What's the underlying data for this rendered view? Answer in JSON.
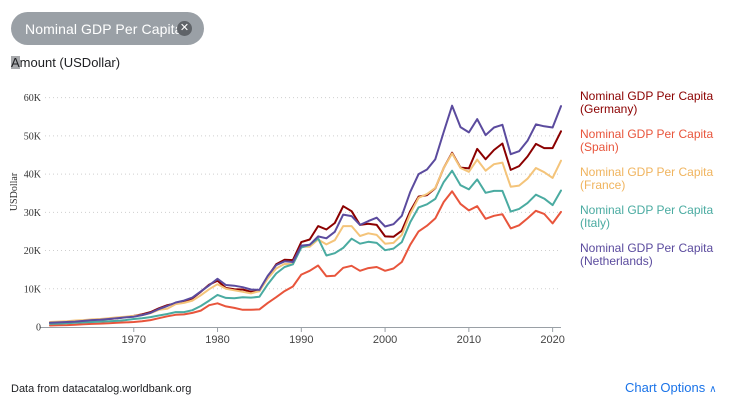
{
  "chip": {
    "label": "Nominal GDP Per Capita",
    "close_icon": "close-circle-icon"
  },
  "amount_label": "Amount (USDollar)",
  "source_text": "Data from datacatalog.worldbank.org",
  "chart_options": {
    "label": "Chart Options",
    "icon": "chevron-up-icon"
  },
  "chart_data": {
    "type": "line",
    "ylabel": "USDollar",
    "ylim": [
      0,
      62000
    ],
    "xlim": [
      1960,
      2021
    ],
    "y_ticks": [
      0,
      10000,
      20000,
      30000,
      40000,
      50000,
      60000
    ],
    "y_tick_labels": [
      "0",
      "10K",
      "20K",
      "30K",
      "40K",
      "50K",
      "60K"
    ],
    "x_ticks": [
      1970,
      1980,
      1990,
      2000,
      2010,
      2020
    ],
    "x_tick_labels": [
      "1970",
      "1980",
      "1990",
      "2000",
      "2010",
      "2020"
    ],
    "grid": "horizontal dotted",
    "legend_position": "right",
    "x": [
      1960,
      1961,
      1962,
      1963,
      1964,
      1965,
      1966,
      1967,
      1968,
      1969,
      1970,
      1971,
      1972,
      1973,
      1974,
      1975,
      1976,
      1977,
      1978,
      1979,
      1980,
      1981,
      1982,
      1983,
      1984,
      1985,
      1986,
      1987,
      1988,
      1989,
      1990,
      1991,
      1992,
      1993,
      1994,
      1995,
      1996,
      1997,
      1998,
      1999,
      2000,
      2001,
      2002,
      2003,
      2004,
      2005,
      2006,
      2007,
      2008,
      2009,
      2010,
      2011,
      2012,
      2013,
      2014,
      2015,
      2016,
      2017,
      2018,
      2019,
      2020,
      2021
    ],
    "series": [
      {
        "name": "Nominal GDP Per Capita (Germany)",
        "color": "#8b0000",
        "values": [
          1200,
          1300,
          1400,
          1500,
          1700,
          1900,
          2000,
          2100,
          2300,
          2600,
          2900,
          3300,
          3900,
          4900,
          5700,
          6200,
          6600,
          7500,
          9200,
          11100,
          12100,
          10200,
          9900,
          9800,
          9200,
          9400,
          13200,
          16400,
          17600,
          17500,
          22200,
          22900,
          26400,
          25500,
          27200,
          31600,
          30300,
          26700,
          27000,
          26700,
          23700,
          23600,
          25200,
          30300,
          34100,
          34500,
          36300,
          41600,
          45600,
          41700,
          41500,
          46600,
          43900,
          46300,
          48000,
          41100,
          42100,
          44600,
          47900,
          46800,
          46800,
          51200
        ]
      },
      {
        "name": "Nominal GDP Per Capita (Spain)",
        "color": "#e8553c",
        "values": [
          400,
          450,
          500,
          600,
          700,
          800,
          900,
          1000,
          1100,
          1200,
          1300,
          1500,
          1800,
          2300,
          2800,
          3200,
          3300,
          3700,
          4300,
          5700,
          6200,
          5400,
          5000,
          4500,
          4500,
          4600,
          6300,
          7800,
          9400,
          10600,
          13700,
          14700,
          16100,
          13300,
          13400,
          15500,
          16000,
          14700,
          15400,
          15700,
          14700,
          15300,
          17000,
          21500,
          25000,
          26500,
          28400,
          32700,
          35500,
          32200,
          30500,
          31600,
          28300,
          29100,
          29500,
          25800,
          26600,
          28400,
          30400,
          29600,
          27100,
          30100
        ]
      },
      {
        "name": "Nominal GDP Per Capita (France)",
        "color": "#f4c47a",
        "values": [
          1300,
          1400,
          1500,
          1700,
          1800,
          2000,
          2100,
          2300,
          2500,
          2700,
          2900,
          3100,
          3600,
          4500,
          4800,
          6000,
          6300,
          6900,
          8300,
          9900,
          11200,
          10000,
          9600,
          9200,
          8800,
          9400,
          12700,
          15300,
          16500,
          16400,
          21000,
          21000,
          22900,
          21600,
          22700,
          26400,
          26400,
          23800,
          24500,
          24100,
          21800,
          22000,
          24100,
          29600,
          33800,
          34800,
          36400,
          41600,
          45400,
          41600,
          40600,
          43800,
          40900,
          42600,
          43000,
          36700,
          37000,
          38800,
          41600,
          40500,
          39000,
          43500
        ]
      },
      {
        "name": "Nominal GDP Per Capita (Italy)",
        "color": "#4aaba1",
        "values": [
          800,
          900,
          1000,
          1100,
          1200,
          1300,
          1400,
          1500,
          1600,
          1800,
          2100,
          2300,
          2600,
          3000,
          3400,
          3900,
          3900,
          4400,
          5500,
          6900,
          8400,
          7600,
          7500,
          7800,
          7700,
          7900,
          11200,
          14000,
          15700,
          16400,
          20800,
          21500,
          23200,
          18700,
          19300,
          20700,
          23100,
          21800,
          22300,
          22000,
          20100,
          20500,
          22200,
          27400,
          31300,
          32100,
          33500,
          37900,
          40900,
          37100,
          36000,
          38600,
          35100,
          35600,
          35600,
          30200,
          30900,
          32400,
          34600,
          33600,
          31900,
          35700
        ]
      },
      {
        "name": "Nominal GDP Per Capita (Netherlands)",
        "color": "#5b4b9e",
        "values": [
          1100,
          1200,
          1300,
          1400,
          1600,
          1800,
          1900,
          2100,
          2300,
          2500,
          2700,
          3100,
          3700,
          4700,
          5500,
          6400,
          6900,
          7700,
          9300,
          10900,
          12600,
          11000,
          10800,
          10400,
          9800,
          9700,
          13400,
          16200,
          17200,
          17000,
          21300,
          21500,
          23700,
          23200,
          24900,
          29400,
          29000,
          26700,
          27700,
          28600,
          26300,
          26900,
          29100,
          35300,
          40000,
          41200,
          43900,
          51000,
          57900,
          52300,
          50900,
          54400,
          50200,
          52200,
          52900,
          45200,
          46000,
          48700,
          53000,
          52500,
          52200,
          57800
        ]
      }
    ]
  }
}
